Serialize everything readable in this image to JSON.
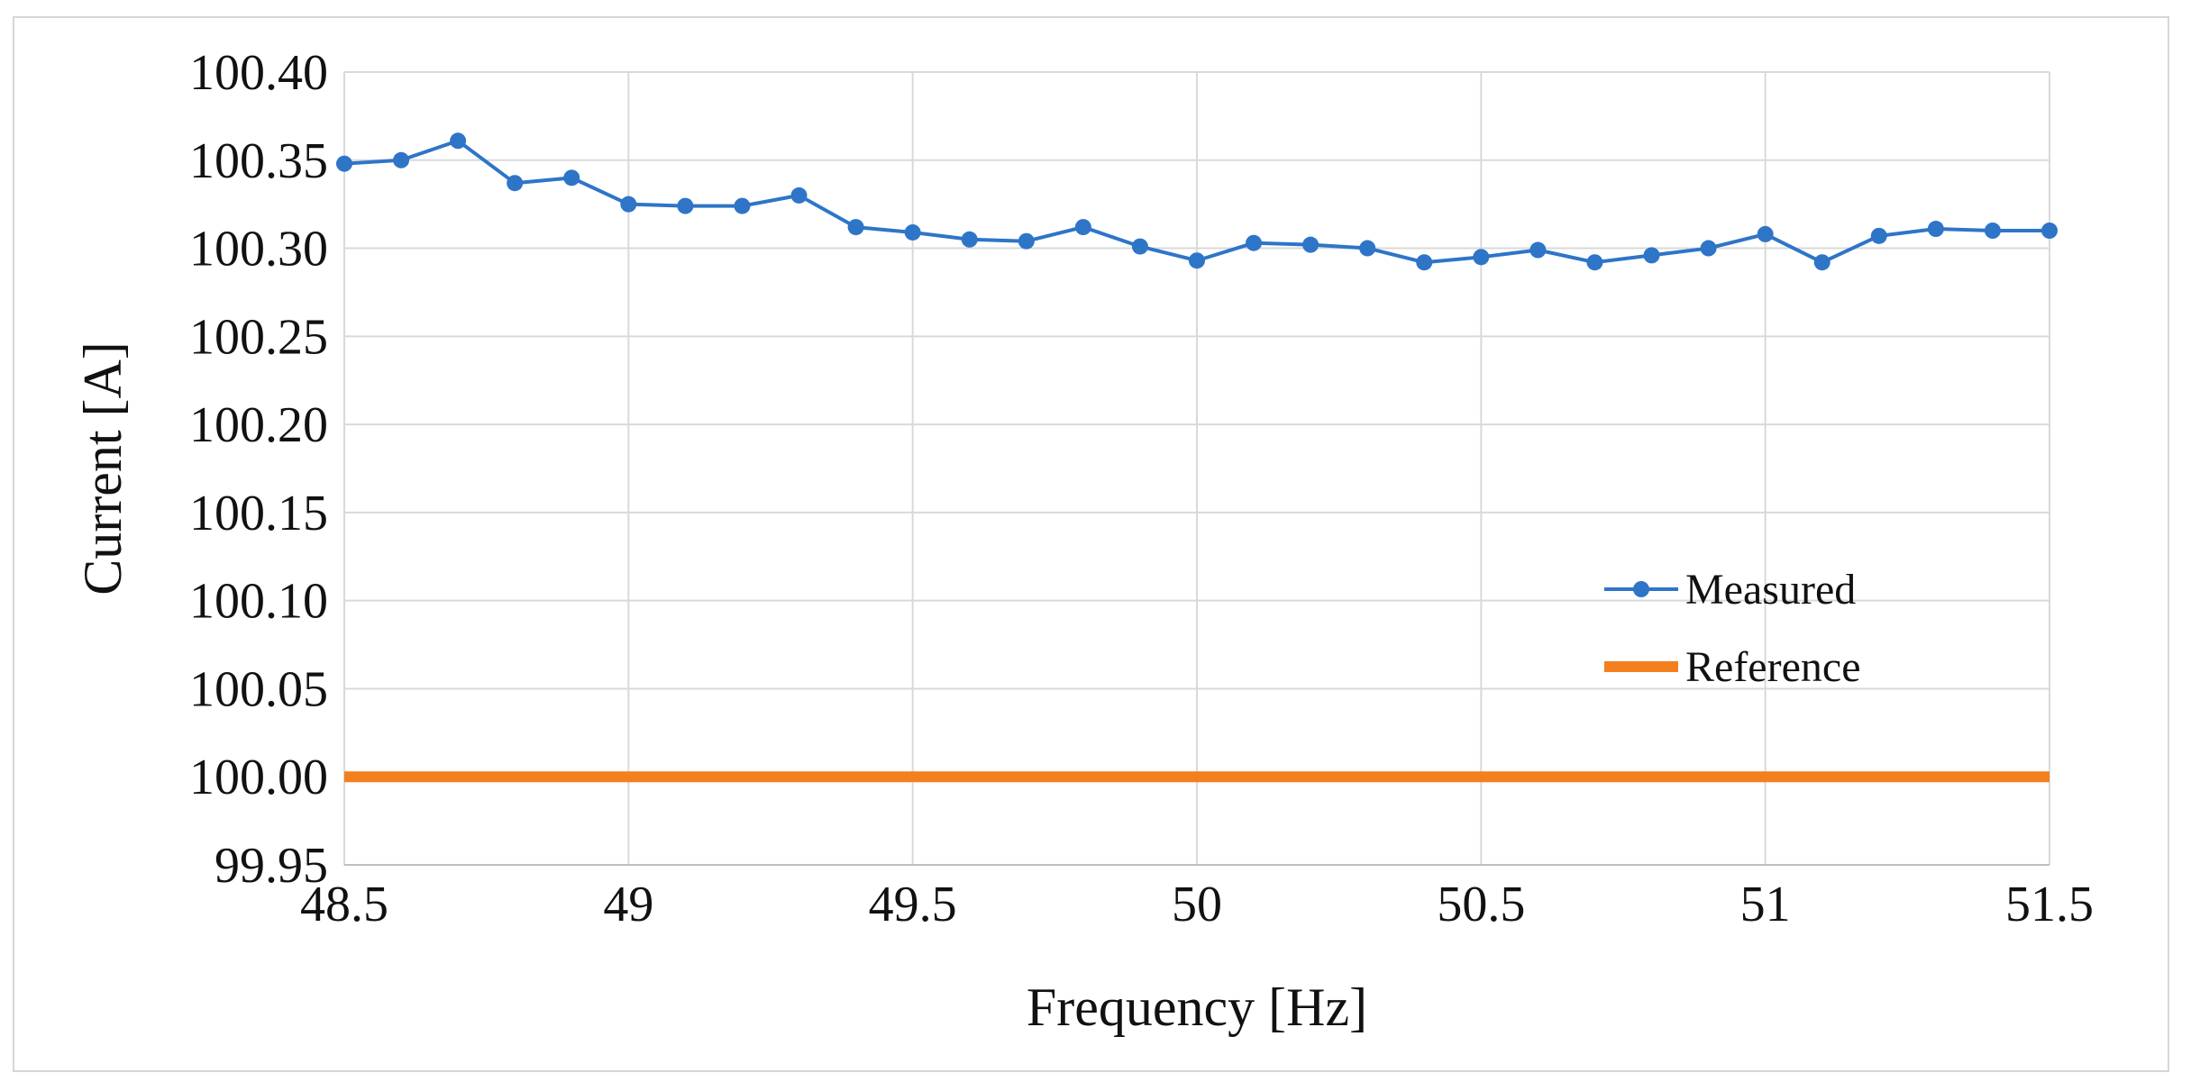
{
  "chart_data": {
    "type": "line",
    "title": "",
    "xlabel": "Frequency [Hz]",
    "ylabel": "Current [A]",
    "xlim": [
      48.5,
      51.5
    ],
    "ylim": [
      99.95,
      100.4
    ],
    "x_ticks": [
      48.5,
      49,
      49.5,
      50,
      50.5,
      51,
      51.5
    ],
    "x_tick_labels": [
      "48.5",
      "49",
      "49.5",
      "50",
      "50.5",
      "51",
      "51.5"
    ],
    "y_ticks": [
      99.95,
      100.0,
      100.05,
      100.1,
      100.15,
      100.2,
      100.25,
      100.3,
      100.35,
      100.4
    ],
    "y_tick_labels": [
      "99.95",
      "100.00",
      "100.05",
      "100.10",
      "100.15",
      "100.20",
      "100.25",
      "100.30",
      "100.35",
      "100.40"
    ],
    "grid": true,
    "legend_position": "center-right",
    "series": [
      {
        "name": "Measured",
        "color": "#2e75c8",
        "marker": "circle",
        "x": [
          48.5,
          48.6,
          48.7,
          48.8,
          48.9,
          49.0,
          49.1,
          49.2,
          49.3,
          49.4,
          49.5,
          49.6,
          49.7,
          49.8,
          49.9,
          50.0,
          50.1,
          50.2,
          50.3,
          50.4,
          50.5,
          50.6,
          50.7,
          50.8,
          50.9,
          51.0,
          51.1,
          51.2,
          51.3,
          51.4,
          51.5
        ],
        "values": [
          100.348,
          100.35,
          100.361,
          100.337,
          100.34,
          100.325,
          100.324,
          100.324,
          100.33,
          100.312,
          100.309,
          100.305,
          100.304,
          100.312,
          100.301,
          100.293,
          100.303,
          100.302,
          100.3,
          100.292,
          100.295,
          100.299,
          100.292,
          100.296,
          100.3,
          100.308,
          100.292,
          100.307,
          100.311,
          100.31,
          100.31
        ]
      },
      {
        "name": "Reference",
        "color": "#f47f1f",
        "marker": "none",
        "x": [
          48.5,
          51.5
        ],
        "values": [
          100.0,
          100.0
        ]
      }
    ]
  }
}
